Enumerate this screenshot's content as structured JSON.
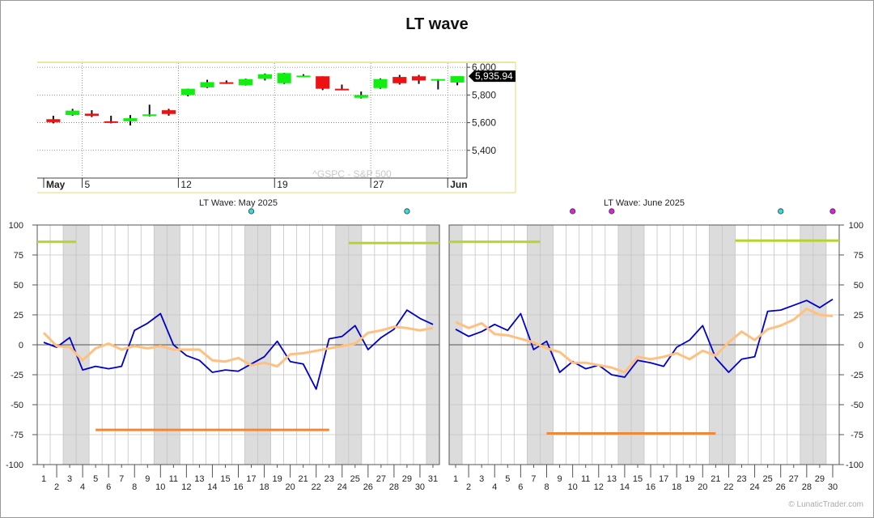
{
  "title": "LT wave",
  "copyright": "© LunaticTrader.com",
  "colors": {
    "up": "#11ee11",
    "down": "#ee1111",
    "wave": "#0000cc",
    "smooth": "#ffc080",
    "lime": "#b5d334",
    "orange": "#f0883a",
    "weekend": "#dcdcdc",
    "cyan_marker": "#33dddd",
    "magenta_marker": "#dd22dd"
  },
  "chart_data": [
    {
      "type": "candlestick",
      "watermark": "^GSPC - S&P 500",
      "last_price_label": "5,935.94",
      "last_price": 5935.94,
      "y_ticks": [
        5400,
        5600,
        5800,
        6000
      ],
      "y_tick_labels": [
        "5,400",
        "5,600",
        "5,800",
        "6,000"
      ],
      "ylim": [
        5200,
        6030
      ],
      "x_labels": [
        {
          "label": "May",
          "index": 0.5,
          "bold": true
        },
        {
          "label": "5",
          "index": 2.5,
          "bold": false
        },
        {
          "label": "12",
          "index": 7.5,
          "bold": false
        },
        {
          "label": "19",
          "index": 12.5,
          "bold": false
        },
        {
          "label": "27",
          "index": 17.5,
          "bold": false
        },
        {
          "label": "Jun",
          "index": 21.5,
          "bold": true
        }
      ],
      "candles": [
        {
          "o": 5625,
          "h": 5650,
          "l": 5595,
          "c": 5604
        },
        {
          "o": 5655,
          "h": 5700,
          "l": 5650,
          "c": 5687
        },
        {
          "o": 5665,
          "h": 5690,
          "l": 5640,
          "c": 5650
        },
        {
          "o": 5610,
          "h": 5650,
          "l": 5595,
          "c": 5607
        },
        {
          "o": 5610,
          "h": 5655,
          "l": 5580,
          "c": 5632
        },
        {
          "o": 5652,
          "h": 5730,
          "l": 5645,
          "c": 5660
        },
        {
          "o": 5690,
          "h": 5700,
          "l": 5650,
          "c": 5663
        },
        {
          "o": 5800,
          "h": 5846,
          "l": 5790,
          "c": 5845
        },
        {
          "o": 5855,
          "h": 5910,
          "l": 5850,
          "c": 5893
        },
        {
          "o": 5892,
          "h": 5905,
          "l": 5880,
          "c": 5887
        },
        {
          "o": 5870,
          "h": 5918,
          "l": 5868,
          "c": 5915
        },
        {
          "o": 5918,
          "h": 5955,
          "l": 5905,
          "c": 5950
        },
        {
          "o": 5885,
          "h": 5960,
          "l": 5880,
          "c": 5958
        },
        {
          "o": 5940,
          "h": 5950,
          "l": 5930,
          "c": 5940
        },
        {
          "o": 5935,
          "h": 5935,
          "l": 5835,
          "c": 5845
        },
        {
          "o": 5845,
          "h": 5875,
          "l": 5835,
          "c": 5842
        },
        {
          "o": 5780,
          "h": 5825,
          "l": 5775,
          "c": 5800
        },
        {
          "o": 5850,
          "h": 5920,
          "l": 5845,
          "c": 5915
        },
        {
          "o": 5930,
          "h": 5945,
          "l": 5875,
          "c": 5885
        },
        {
          "o": 5935,
          "h": 5945,
          "l": 5880,
          "c": 5905
        },
        {
          "o": 5905,
          "h": 5915,
          "l": 5840,
          "c": 5915
        },
        {
          "o": 5890,
          "h": 5935,
          "l": 5870,
          "c": 5936
        }
      ]
    },
    {
      "type": "line",
      "title": "LT Wave: May 2025",
      "days": 31,
      "ylim": [
        -100,
        100
      ],
      "y_ticks": [
        100,
        75,
        50,
        25,
        0,
        -25,
        -50,
        -75,
        -100
      ],
      "weekends": [
        3,
        4,
        10,
        11,
        17,
        18,
        24,
        25,
        31
      ],
      "markers": [
        {
          "day": 17,
          "color": "cyan"
        },
        {
          "day": 29,
          "color": "cyan"
        }
      ],
      "lime_segments": [
        [
          1,
          3,
          86
        ],
        [
          25,
          31,
          85
        ]
      ],
      "orange_segments": [
        [
          5,
          23,
          -71
        ]
      ],
      "series": [
        {
          "key": "wave",
          "values": [
            2,
            -2,
            6,
            -21,
            -18,
            -20,
            -18,
            12,
            18,
            26,
            0,
            -9,
            -13,
            -23,
            -21,
            -22,
            -16,
            -10,
            3,
            -14,
            -16,
            -37,
            5,
            7,
            16,
            -4,
            6,
            13,
            29,
            22,
            17
          ]
        },
        {
          "key": "smooth",
          "values": [
            10,
            -1,
            -2,
            -13,
            -3,
            1,
            -4,
            -1,
            -3,
            -1,
            -4,
            -4,
            -4,
            -13,
            -14,
            -11,
            -17,
            -15,
            -18,
            -8,
            -7,
            -5,
            -3,
            -1,
            1,
            10,
            12,
            15,
            14,
            12,
            14
          ]
        }
      ]
    },
    {
      "type": "line",
      "title": "LT Wave: June 2025",
      "days": 30,
      "ylim": [
        -100,
        100
      ],
      "y_ticks": [
        100,
        75,
        50,
        25,
        0,
        -25,
        -50,
        -75,
        -100
      ],
      "weekends": [
        1,
        7,
        8,
        14,
        15,
        21,
        22,
        28,
        29
      ],
      "markers": [
        {
          "day": 10,
          "color": "magenta"
        },
        {
          "day": 13,
          "color": "magenta"
        },
        {
          "day": 26,
          "color": "cyan"
        },
        {
          "day": 30,
          "color": "magenta"
        }
      ],
      "lime_segments": [
        [
          1,
          7,
          86
        ],
        [
          23,
          30,
          87
        ]
      ],
      "orange_segments": [
        [
          8,
          21,
          -74
        ]
      ],
      "series": [
        {
          "key": "wave",
          "values": [
            13,
            7,
            11,
            17,
            12,
            26,
            -4,
            3,
            -23,
            -14,
            -20,
            -17,
            -25,
            -27,
            -13,
            -15,
            -18,
            -2,
            4,
            16,
            -11,
            -23,
            -12,
            -10,
            28,
            29,
            33,
            37,
            31,
            38
          ]
        },
        {
          "key": "smooth",
          "values": [
            19,
            14,
            18,
            9,
            8,
            5,
            2,
            -3,
            -6,
            -15,
            -15,
            -17,
            -19,
            -23,
            -10,
            -12,
            -10,
            -7,
            -12,
            -5,
            -9,
            2,
            11,
            4,
            13,
            16,
            21,
            30,
            25,
            24
          ]
        }
      ]
    }
  ]
}
